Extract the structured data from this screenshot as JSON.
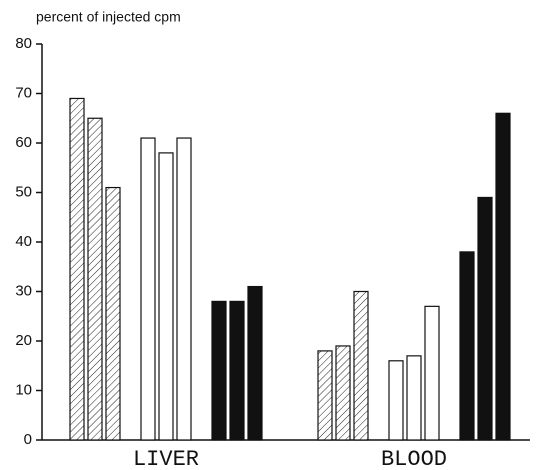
{
  "chart_data": {
    "type": "bar",
    "title": "percent of injected cpm",
    "categories": [
      "LIVER",
      "BLOOD"
    ],
    "series": [
      {
        "fill": "hatched",
        "values": [
          69,
          18
        ]
      },
      {
        "fill": "hatched",
        "values": [
          65,
          19
        ]
      },
      {
        "fill": "hatched",
        "values": [
          51,
          30
        ]
      },
      {
        "fill": "white",
        "values": [
          61,
          16
        ]
      },
      {
        "fill": "white",
        "values": [
          58,
          17
        ]
      },
      {
        "fill": "white",
        "values": [
          61,
          27
        ]
      },
      {
        "fill": "black",
        "values": [
          28,
          38
        ]
      },
      {
        "fill": "black",
        "values": [
          28,
          49
        ]
      },
      {
        "fill": "black",
        "values": [
          31,
          66
        ]
      }
    ],
    "ylim": [
      0,
      80
    ],
    "yticks": [
      0,
      10,
      20,
      30,
      40,
      50,
      60,
      70,
      80
    ],
    "grid": false
  }
}
